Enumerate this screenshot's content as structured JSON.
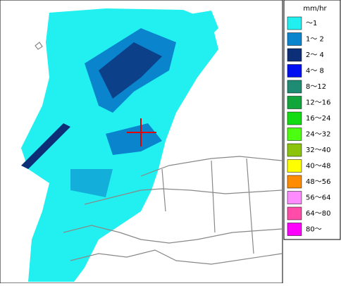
{
  "legend": {
    "unit": "mm/hr",
    "items": [
      {
        "label": "～1",
        "color": "#22f0f0"
      },
      {
        "label": "1～ 2",
        "color": "#0a84cc"
      },
      {
        "label": "2～ 4",
        "color": "#0c2f78"
      },
      {
        "label": "4～ 8",
        "color": "#0010f0"
      },
      {
        "label": "8～12",
        "color": "#1e8c72"
      },
      {
        "label": "12～16",
        "color": "#10a63c"
      },
      {
        "label": "16～24",
        "color": "#12dc12"
      },
      {
        "label": "24～32",
        "color": "#4cff10"
      },
      {
        "label": "32～40",
        "color": "#8cc40c"
      },
      {
        "label": "40～48",
        "color": "#ffff00"
      },
      {
        "label": "48～56",
        "color": "#ff8c00"
      },
      {
        "label": "56～64",
        "color": "#ff8cff"
      },
      {
        "label": "64～80",
        "color": "#ff4ca8"
      },
      {
        "label": "80～",
        "color": "#ff00ff"
      }
    ]
  }
}
